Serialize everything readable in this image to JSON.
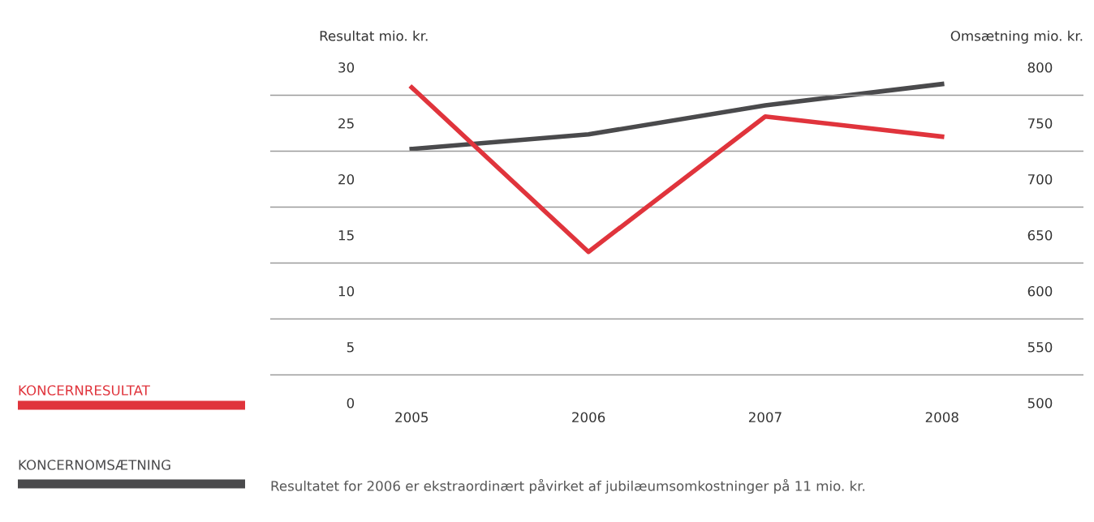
{
  "chart_data": {
    "type": "line",
    "categories": [
      "2005",
      "2006",
      "2007",
      "2008"
    ],
    "series": [
      {
        "name": "KONCERNRESULTAT",
        "color": "#e0343c",
        "values": [
          28.2,
          13.5,
          25.6,
          23.8
        ]
      },
      {
        "name": "KONCERNOMSÆTNING",
        "color": "#4a4a4c",
        "values": [
          727,
          740,
          766,
          785
        ],
        "axis": "y2"
      }
    ],
    "ylabel": "Resultat mio. kr.",
    "y2label": "Omsætning mio. kr.",
    "ylim": [
      0,
      30
    ],
    "yticks": [
      0,
      {
        "value": 2.5,
        "label": null
      },
      5,
      {
        "value": 7.5,
        "label": null
      },
      10,
      {
        "value": 12.5,
        "label": null
      },
      15,
      {
        "value": 17.5,
        "label": null
      },
      20,
      {
        "value": 22.5,
        "label": null
      },
      25,
      {
        "value": 27.5,
        "label": null
      },
      30
    ],
    "y2lim": [
      500,
      800
    ],
    "y2ticks": [
      500,
      550,
      600,
      650,
      700,
      750,
      800
    ],
    "grid": "y",
    "legend": "left",
    "marker": "none",
    "line_style": "solid",
    "annotations": [
      "Resultatet for 2006 er ekstraordinært påvirket af jubilæumsomkostninger på 11 mio. kr."
    ]
  }
}
